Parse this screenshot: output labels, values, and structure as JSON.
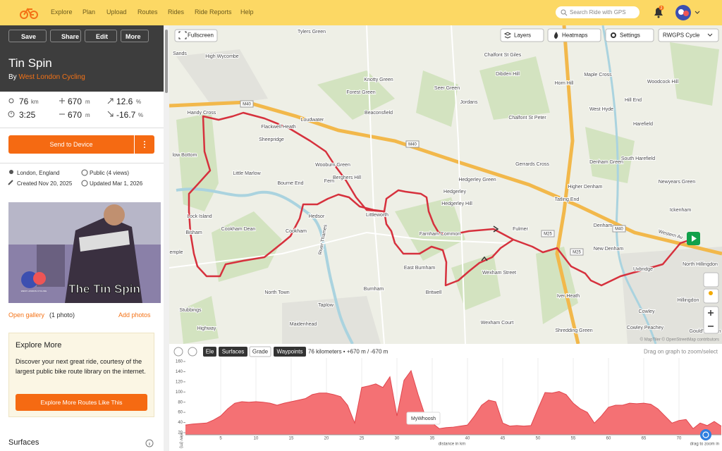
{
  "nav": {
    "links": [
      "Explore",
      "Plan",
      "Upload",
      "Routes",
      "Rides",
      "Ride Reports",
      "Help"
    ],
    "search": "Search Ride with GPS",
    "notifications": 2
  },
  "sidebar": {
    "actions": [
      "Save",
      "Share",
      "Edit",
      "More"
    ],
    "title": "Tin Spin",
    "by": "By",
    "author": "West London Cycling",
    "stats": {
      "distance": 76,
      "distance_unit": "km",
      "gain": 670,
      "gain_unit": "m",
      "max_grade": 12.6,
      "max_grade_unit": "%",
      "time": "3:25",
      "loss": 670,
      "loss_unit": "m",
      "min_grade": -16.7,
      "min_grade_unit": "%"
    },
    "send": "Send to Device",
    "location": "London, England",
    "visibility": "Public (4 views)",
    "created": "Created Nov 20, 2025",
    "updated": "Updated Mar 1, 2026",
    "photo_logo": "WEST LONDON CYCLING",
    "photo_caption": "The Tin Spin",
    "gallery": "Open gallery",
    "photo_count": "(1 photo)",
    "add_photos": "Add photos",
    "explore": {
      "title": "Explore More",
      "text": "Discover your next great ride, courtesy of the largest public bike route library on the internet.",
      "button": "Explore More Routes Like This"
    },
    "surfaces": "Surfaces"
  },
  "map": {
    "controls": [
      "Fullscreen",
      "Layers",
      "Heatmaps",
      "Settings",
      "RWGPS Cycle"
    ],
    "places": [
      "Tylers Green",
      "High Wycombe",
      "Sands",
      "Chalfont St Giles",
      "Dibden Hill",
      "Knotty Green",
      "Seer Green",
      "Maple Cross",
      "Woodcock Hill",
      "Horn Hill",
      "Forest Green",
      "Hill End",
      "Beaconsfield",
      "Jordans",
      "Chalfont St Peter",
      "West Hyde",
      "Handy Cross",
      "Loudwater",
      "Flackwell Heath",
      "Harefield",
      "Sheepridge",
      "Wooburn Green",
      "Berghers Hill",
      "Gerrards Cross",
      "Hedgerley Green",
      "South Harefield",
      "Denham Green",
      "low Bottom",
      "Little Marlow",
      "Bourne End",
      "Fern",
      "Higher Denham",
      "Newyears Green",
      "Hedgerley",
      "Hedgerley Hill",
      "Tatling End",
      "Ickenham",
      "Lock Island",
      "Hedsor",
      "Littleworth",
      "Farnham Common",
      "Fulmer",
      "Bisham",
      "Cookham Dean",
      "Cookham",
      "Denham",
      "Western Av",
      "New Denham",
      "emple",
      "East Burnham",
      "Wexham Street",
      "Uxbridge",
      "North Hillingdon",
      "Burnham",
      "Britwell",
      "Iver Heath",
      "North Town",
      "Hillingdon",
      "Taplow",
      "Cowley",
      "Stubbings",
      "Maidenhead",
      "Wexham Court",
      "Shredding Green",
      "Cowley Peachey",
      "Highway",
      "River Thames",
      "Gould's Green"
    ],
    "roads": [
      "M40",
      "M40",
      "M40",
      "M25",
      "M25"
    ],
    "attribution": "© MapTiler © OpenStreetMap contributors"
  },
  "elevation": {
    "type": "area",
    "toggles": [
      "Ele",
      "Surfaces",
      "Grade",
      "Waypoints"
    ],
    "summary": "76 kilometers • +670 m / -670 m",
    "hint": "Drag on graph to zoom/select",
    "y_label": "elev (m)",
    "x_label": "distance in km",
    "zoom_hint": "drag to zoom in",
    "waypoint": "MyWhoosh",
    "color": "#f47174",
    "grid": true,
    "x": [
      0,
      1,
      2,
      3,
      4,
      5,
      6,
      7,
      8,
      9,
      10,
      11,
      12,
      13,
      14,
      15,
      16,
      17,
      18,
      19,
      20,
      21,
      22,
      23,
      24,
      25,
      26,
      27,
      28,
      29,
      30,
      31,
      32,
      33,
      34,
      35,
      36,
      37,
      38,
      39,
      40,
      41,
      42,
      43,
      44,
      45,
      46,
      47,
      48,
      49,
      50,
      51,
      52,
      53,
      54,
      55,
      56,
      57,
      58,
      59,
      60,
      61,
      62,
      63,
      64,
      65,
      66,
      67,
      68,
      69,
      70,
      71,
      72,
      73,
      74,
      75,
      76
    ],
    "values": [
      35,
      37,
      38,
      39,
      45,
      53,
      67,
      78,
      81,
      80,
      81,
      80,
      78,
      74,
      78,
      81,
      84,
      87,
      95,
      98,
      98,
      95,
      91,
      74,
      39,
      109,
      112,
      116,
      109,
      130,
      53,
      123,
      142,
      95,
      53,
      39,
      28,
      30,
      31,
      33,
      35,
      53,
      74,
      84,
      81,
      39,
      33,
      34,
      33,
      34,
      67,
      99,
      98,
      101,
      95,
      78,
      67,
      60,
      39,
      53,
      70,
      74,
      74,
      78,
      77,
      78,
      76,
      67,
      53,
      39,
      44,
      46,
      28,
      39,
      34,
      42,
      33
    ],
    "xlim": [
      0,
      76
    ],
    "xticks": [
      5,
      10,
      15,
      20,
      25,
      30,
      35,
      40,
      45,
      50,
      55,
      60,
      65,
      70
    ],
    "ylim": [
      20,
      160
    ],
    "yticks": [
      20,
      40,
      60,
      80,
      100,
      120,
      140,
      160
    ]
  }
}
